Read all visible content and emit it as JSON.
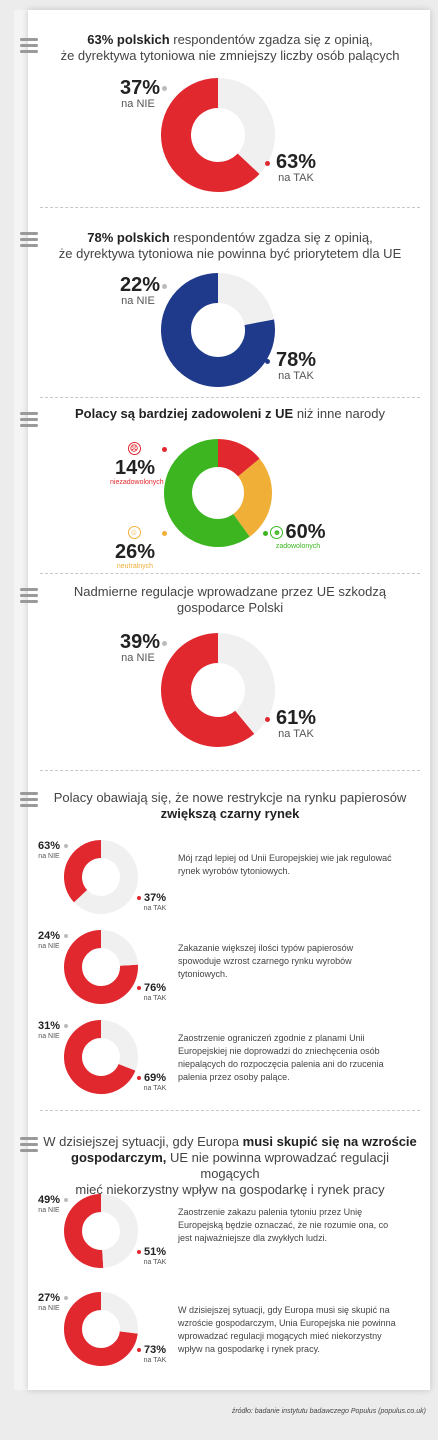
{
  "colors": {
    "red": "#e0282e",
    "navy": "#1f3a8a",
    "grey": "#f0f0f0",
    "orange": "#f0b038",
    "green": "#3cb520"
  },
  "charts": {
    "c1": {
      "title_bold": "63% polskich",
      "title_rest": " respondentów zgadza się z opinią,",
      "title_line2": "że dyrektywa tytoniowa nie zmniejszy liczby osób palących",
      "nie_pct": "37%",
      "nie_label": "na NIE",
      "tak_pct": "63%",
      "tak_label": "na TAK"
    },
    "c2": {
      "title_bold": "78% polskich",
      "title_rest": " respondentów zgadza się z opinią,",
      "title_line2": "że dyrektywa tytoniowa nie powinna być priorytetem dla UE",
      "nie_pct": "22%",
      "nie_label": "na NIE",
      "tak_pct": "78%",
      "tak_label": "na TAK"
    },
    "c3": {
      "title_bold": "Polacy są bardziej zadowoleni z UE",
      "title_rest": " niż inne narody",
      "neg_pct": "14%",
      "neg_label": "niezadowolonych",
      "neu_pct": "26%",
      "neu_label": "neutralnych",
      "pos_pct": "60%",
      "pos_label": "zadowolonych"
    },
    "c4": {
      "title_line1": "Nadmierne regulacje wprowadzane przez UE szkodzą",
      "title_line2": "gospodarce Polski",
      "nie_pct": "39%",
      "nie_label": "na NIE",
      "tak_pct": "61%",
      "tak_label": "na TAK"
    },
    "s5": {
      "title_line1": "Polacy obawiają się, że nowe restrykcje na rynku papierosów",
      "title_bold": "zwiększą czarny rynek",
      "items": [
        {
          "nie_pct": "63%",
          "nie_label": "na NIE",
          "tak_pct": "37%",
          "tak_label": "na TAK",
          "caption": "Mój rząd lepiej od Unii Europejskiej wie jak regulować rynek wyrobów tytoniowych."
        },
        {
          "nie_pct": "24%",
          "nie_label": "na NIE",
          "tak_pct": "76%",
          "tak_label": "na TAK",
          "caption": "Zakazanie większej ilości typów papierosów spowoduje wzrost czarnego rynku wyrobów tytoniowych."
        },
        {
          "nie_pct": "31%",
          "nie_label": "na NIE",
          "tak_pct": "69%",
          "tak_label": "na TAK",
          "caption": "Zaostrzenie ograniczeń zgodnie z planami Unii Europejskiej nie doprowadzi do zniechęcenia osób niepalących do rozpoczęcia palenia ani do rzucenia palenia przez osoby palące."
        }
      ]
    },
    "s6": {
      "title_pre": "W dzisiejszej sytuacji, gdy Europa ",
      "title_bold1": "musi skupić się na wzroście",
      "title_bold2": "gospodarczym,",
      "title_rest": " UE nie powinna wprowadzać regulacji mogących",
      "title_line3": "mieć niekorzystny wpływ na gospodarkę i rynek pracy",
      "items": [
        {
          "nie_pct": "49%",
          "nie_label": "na NIE",
          "tak_pct": "51%",
          "tak_label": "na TAK",
          "caption": "Zaostrzenie zakazu palenia tytoniu przez Unię Europejską będzie oznaczać, że nie rozumie ona, co jest najważniejsze dla zwykłych ludzi."
        },
        {
          "nie_pct": "27%",
          "nie_label": "na NIE",
          "tak_pct": "73%",
          "tak_label": "na TAK",
          "caption": "W dzisiejszej sytuacji, gdy Europa musi się skupić na wzroście gospodarczym, Unia Europejska nie powinna wprowadzać regulacji mogących mieć niekorzystny wpływ na gospodarkę i rynek pracy."
        }
      ]
    }
  },
  "source": "źródło: badanie instytutu badawczego Populus (populus.co.uk)",
  "chart_data": [
    {
      "type": "pie",
      "title": "63% polskich respondentów zgadza się z opinią, że dyrektywa tytoniowa nie zmniejszy liczby osób palących",
      "categories": [
        "na TAK",
        "na NIE"
      ],
      "values": [
        63,
        37
      ]
    },
    {
      "type": "pie",
      "title": "78% polskich respondentów zgadza się z opinią, że dyrektywa tytoniowa nie powinna być priorytetem dla UE",
      "categories": [
        "na TAK",
        "na NIE"
      ],
      "values": [
        78,
        22
      ]
    },
    {
      "type": "pie",
      "title": "Polacy są bardziej zadowoleni z UE niż inne narody",
      "categories": [
        "zadowolonych",
        "neutralnych",
        "niezadowolonych"
      ],
      "values": [
        60,
        26,
        14
      ]
    },
    {
      "type": "pie",
      "title": "Nadmierne regulacje wprowadzane przez UE szkodzą gospodarce Polski",
      "categories": [
        "na TAK",
        "na NIE"
      ],
      "values": [
        61,
        39
      ]
    },
    {
      "type": "pie",
      "title": "Mój rząd lepiej od Unii Europejskiej wie jak regulować rynek wyrobów tytoniowych.",
      "categories": [
        "na TAK",
        "na NIE"
      ],
      "values": [
        37,
        63
      ]
    },
    {
      "type": "pie",
      "title": "Zakazanie większej ilości typów papierosów spowoduje wzrost czarnego rynku wyrobów tytoniowych.",
      "categories": [
        "na TAK",
        "na NIE"
      ],
      "values": [
        76,
        24
      ]
    },
    {
      "type": "pie",
      "title": "Zaostrzenie ograniczeń zgodnie z planami Unii Europejskiej nie doprowadzi do zniechęcenia osób niepalących do rozpoczęcia palenia ani do rzucenia palenia przez osoby palące.",
      "categories": [
        "na TAK",
        "na NIE"
      ],
      "values": [
        69,
        31
      ]
    },
    {
      "type": "pie",
      "title": "Zaostrzenie zakazu palenia tytoniu przez Unię Europejską będzie oznaczać, że nie rozumie ona, co jest najważniejsze dla zwykłych ludzi.",
      "categories": [
        "na TAK",
        "na NIE"
      ],
      "values": [
        51,
        49
      ]
    },
    {
      "type": "pie",
      "title": "W dzisiejszej sytuacji, gdy Europa musi się skupić na wzroście gospodarczym, Unia Europejska nie powinna wprowadzać regulacji mogących mieć niekorzystny wpływ na gospodarkę i rynek pracy.",
      "categories": [
        "na TAK",
        "na NIE"
      ],
      "values": [
        73,
        27
      ]
    }
  ]
}
